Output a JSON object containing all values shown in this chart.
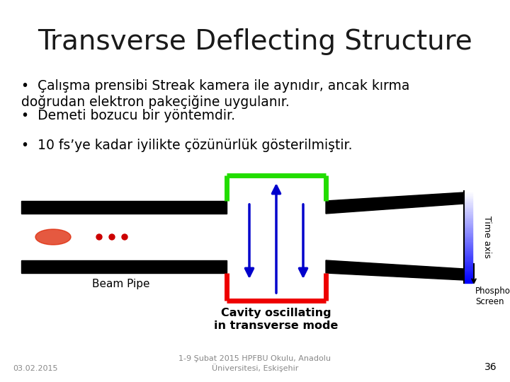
{
  "title": "Transverse Deflecting Structure",
  "title_fontsize": 28,
  "title_color": "#1a1a1a",
  "bullets": [
    "Çalışma prensibi Streak kamera ile aynıdır, ancak kırma\ndoğrudan elektron pakeçiğine uygulanır.",
    "Demeti bozucu bir yöntemdir.",
    "10 fs’ye kadar iyilikte çözünürlük gösterilmiştir."
  ],
  "bullet_fontsize": 13.5,
  "label_beam_pipe": "Beam Pipe",
  "label_cavity_line1": "Cavity oscillating",
  "label_cavity_line2": "in transverse mode",
  "label_time_axis": "Time axis",
  "label_phosphor": "Phosphor\nScreen",
  "label_date": "03.02.2015",
  "label_conference": "1-9 Şubat 2015 HPFBU Okulu, Anadolu\nÜniversitesi, Eskişehir",
  "label_page": "36",
  "bg_color": "#ffffff",
  "text_color": "#000000",
  "pipe_color": "#000000",
  "cavity_green": "#22dd00",
  "cavity_red": "#ee0000",
  "arrow_color": "#0000cc",
  "footer_color": "#888888"
}
